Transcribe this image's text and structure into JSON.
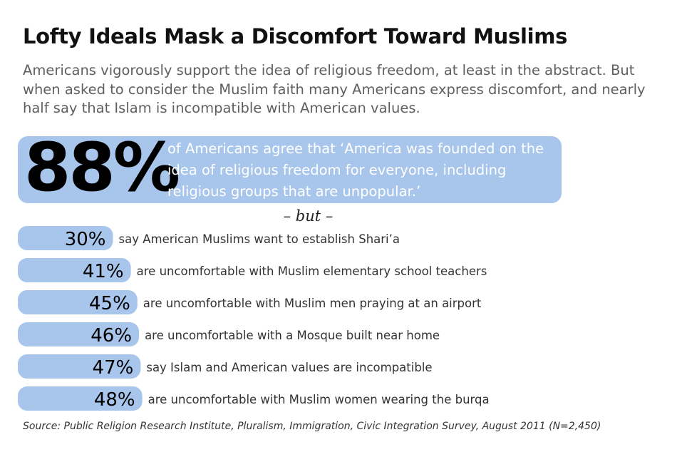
{
  "title": "Lofty Ideals Mask a Discomfort Toward Muslims",
  "subtitle": "Americans vigorously support the idea of religious freedom, at least in the abstract. But when asked to consider the Muslim faith many Americans express discomfort, and nearly half say that Islam is incompatible with American values.",
  "hero": {
    "value_label": "88%",
    "text": "of Americans agree that ‘America was founded on the idea of religious freedom for everyone, including religious groups that are unpopular.’"
  },
  "separator": "– but –",
  "source": "Source: Public Religion Research Institute, Pluralism, Immigration, Civic Integration Survey, August 2011 (N=2,450)",
  "colors": {
    "bar": "#a8c5ec",
    "text": "#000000",
    "label": "#333333"
  },
  "chart_data": {
    "type": "bar",
    "orientation": "horizontal",
    "headline": {
      "value": 88,
      "label": "88%"
    },
    "categories": [
      "say American Muslims want to establish Shari’a",
      "are uncomfortable with Muslim elementary school teachers",
      "are uncomfortable with Muslim men praying at an airport",
      "are uncomfortable with a Mosque built near home",
      "say Islam and American values are incompatible",
      "are uncomfortable with Muslim women wearing the burqa"
    ],
    "values": [
      30,
      41,
      45,
      46,
      47,
      48
    ],
    "value_labels": [
      "30%",
      "41%",
      "45%",
      "46%",
      "47%",
      "48%"
    ],
    "xlim": [
      0,
      100
    ],
    "grid": false,
    "legend": "none"
  }
}
